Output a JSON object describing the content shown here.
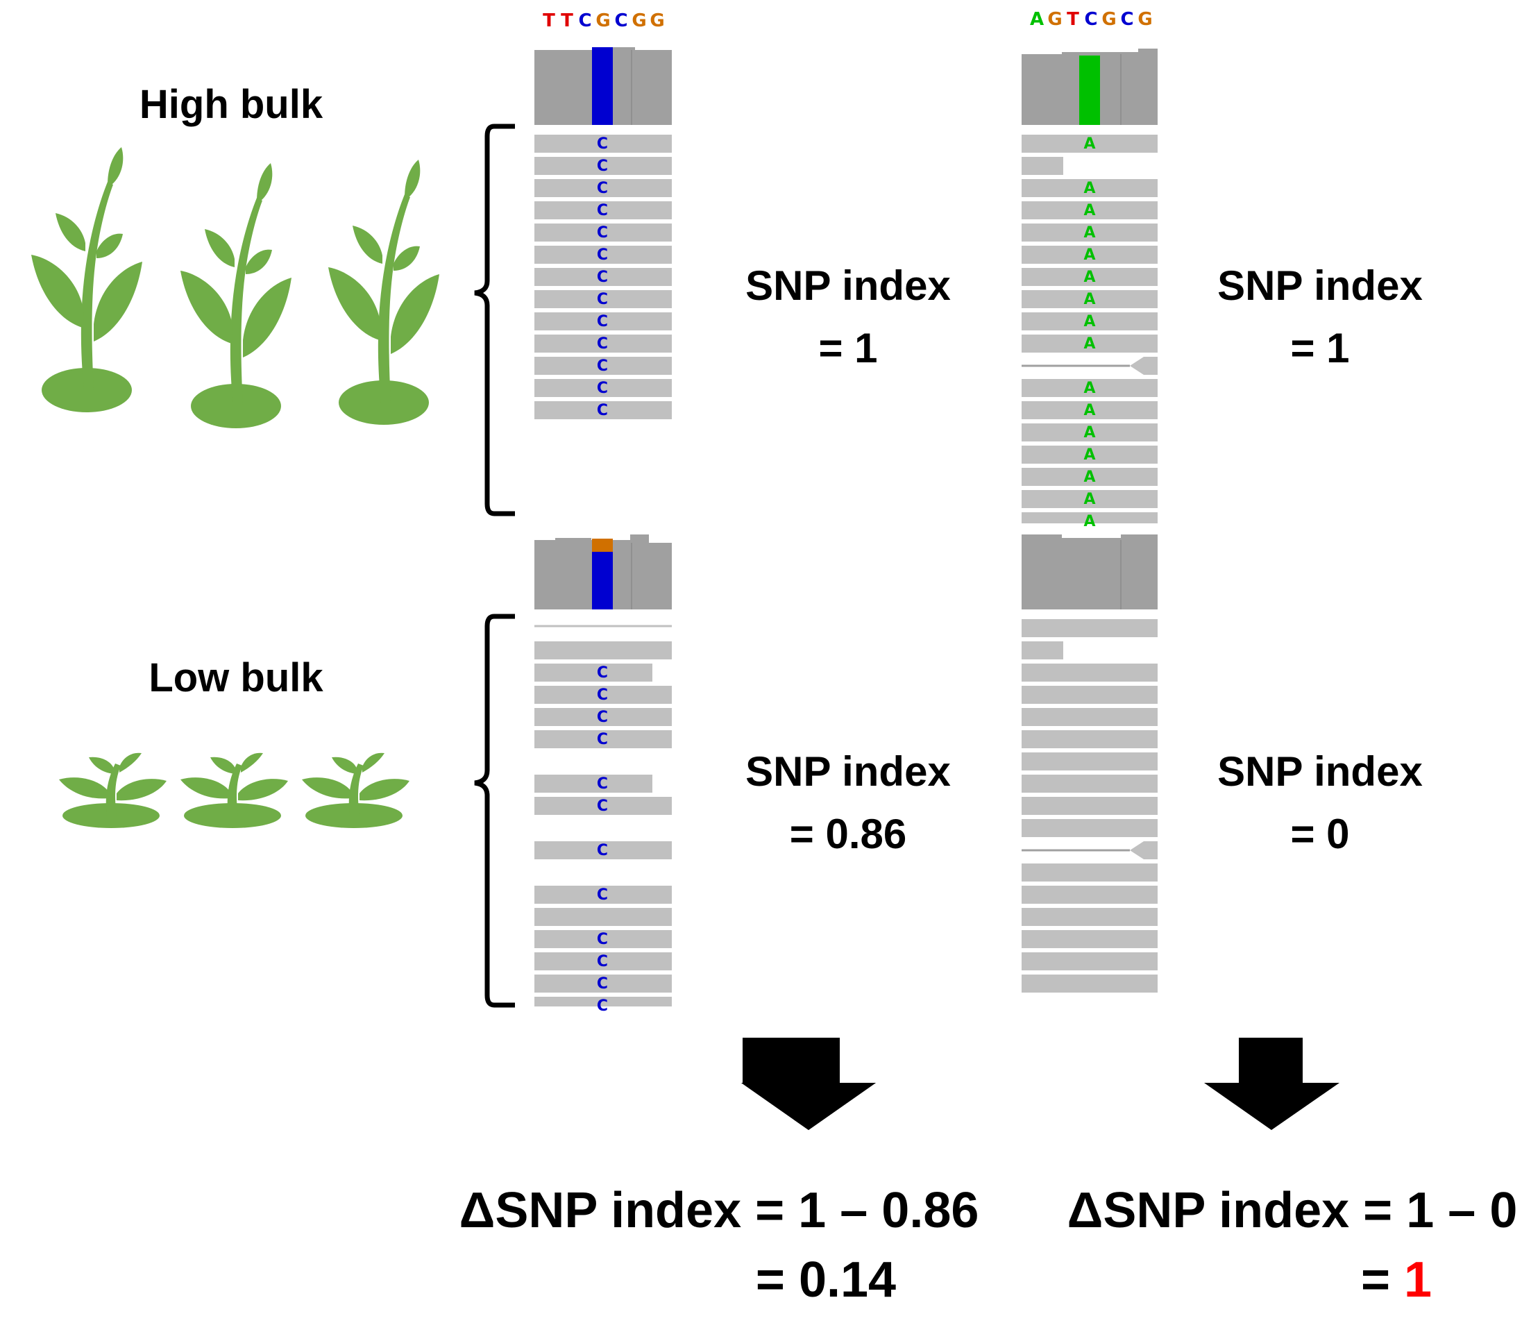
{
  "groups": {
    "high": {
      "label": "High bulk"
    },
    "low": {
      "label": "Low bulk"
    }
  },
  "loci": [
    {
      "reference": [
        "T",
        "T",
        "C",
        "G",
        "C",
        "G",
        "G"
      ],
      "high_snp": {
        "label": "SNP index",
        "value": "= 1",
        "read_base": "C"
      },
      "low_snp": {
        "label": "SNP index",
        "value": "= 0.86",
        "read_base": "C"
      },
      "delta": {
        "equation": "ΔSNP index = 1 – 0.86",
        "result_prefix": "= ",
        "result_value": "0.14"
      }
    },
    {
      "reference": [
        "A",
        "G",
        "T",
        "C",
        "G",
        "C",
        "G"
      ],
      "high_snp": {
        "label": "SNP index",
        "value": "= 1",
        "read_base": "A"
      },
      "low_snp": {
        "label": "SNP index",
        "value": "= 0",
        "read_base": ""
      },
      "delta": {
        "equation": "ΔSNP index = 1 – 0",
        "result_prefix": "= ",
        "result_value": "1"
      }
    }
  ],
  "colors": {
    "plant": "#70ad47",
    "base_A": "#00c000",
    "base_C": "#0000d0",
    "base_G": "#d07000",
    "base_T": "#e00000",
    "read": "#c0c0c0",
    "coverage": "#a0a0a0",
    "result_highlight": "#ff0000"
  }
}
